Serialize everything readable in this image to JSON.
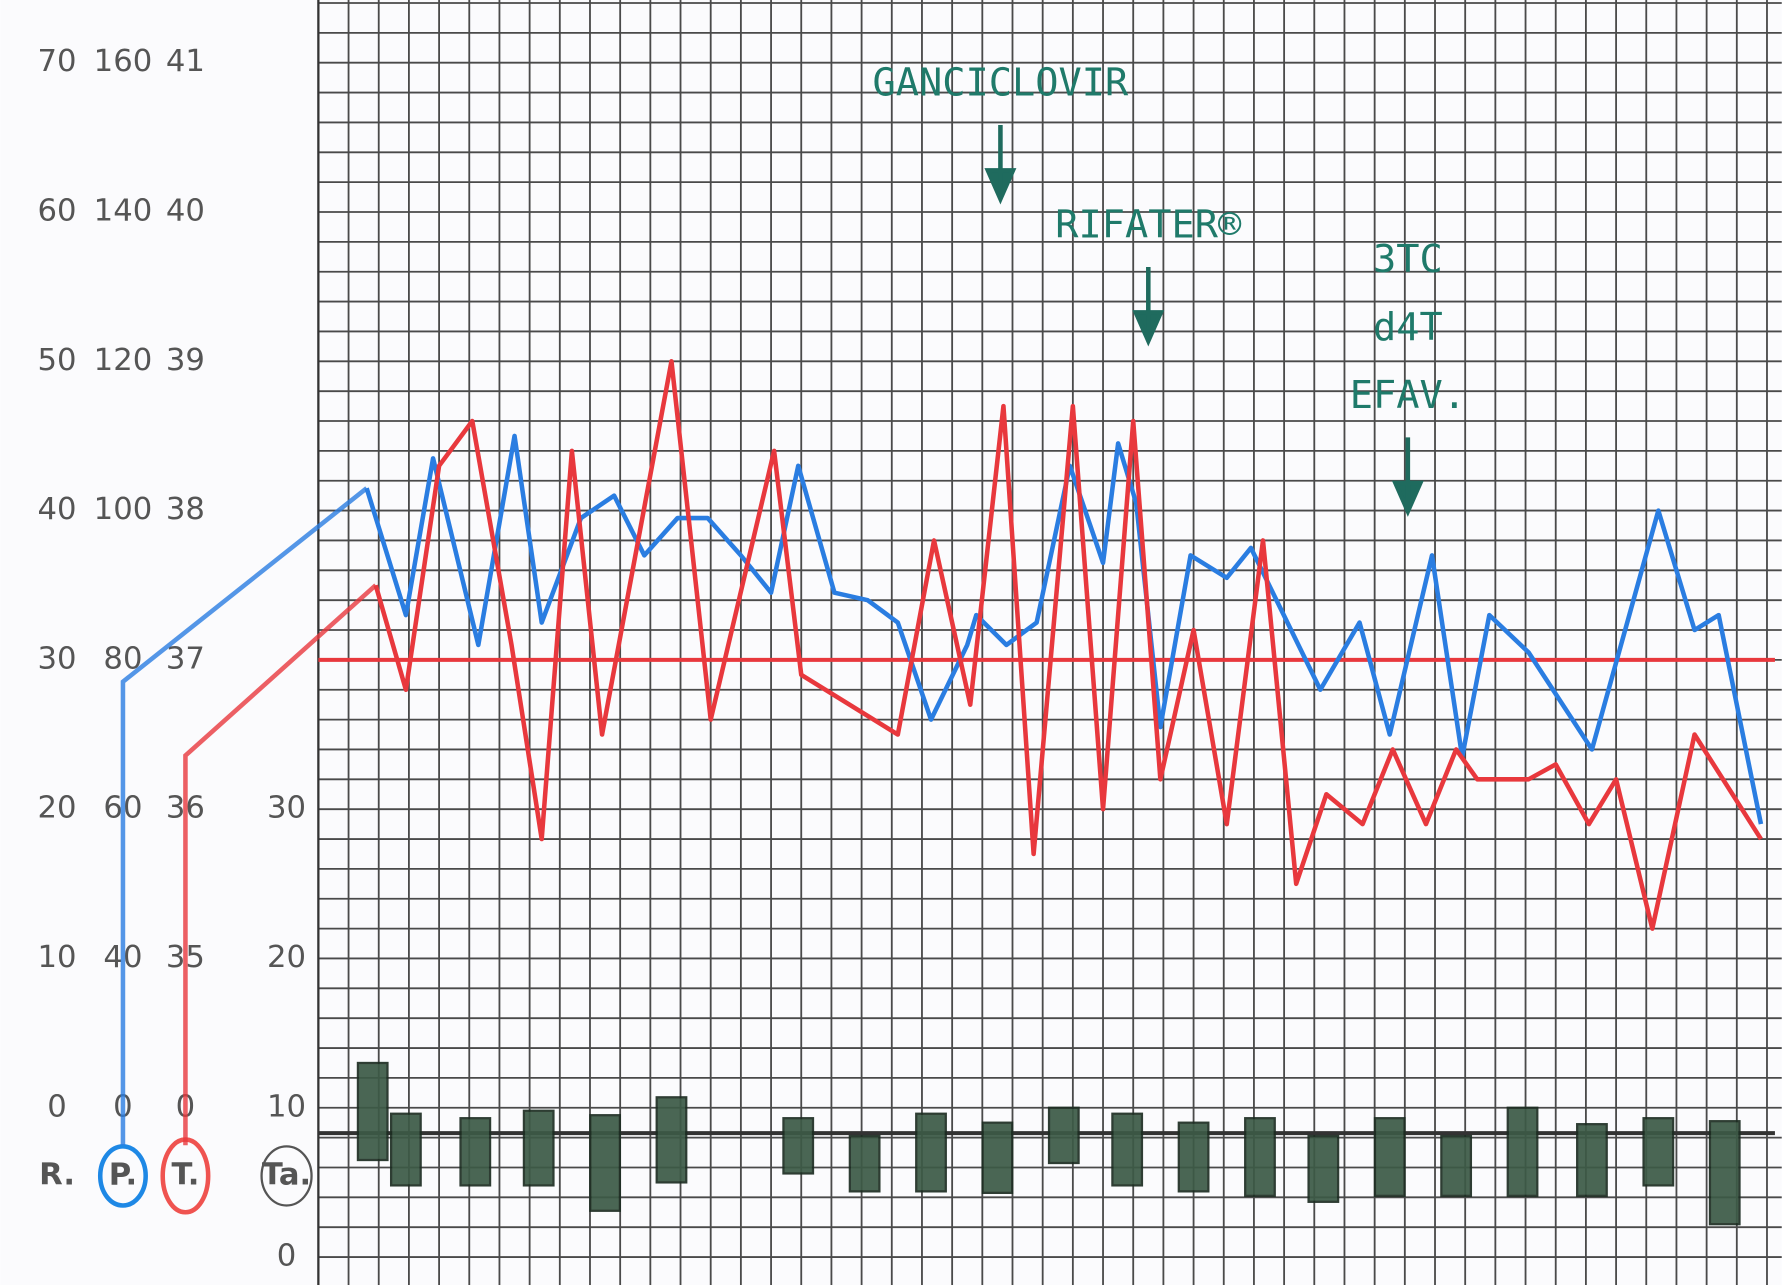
{
  "chart_data": {
    "type": "line",
    "xlim": [
      0,
      48
    ],
    "axes": [
      {
        "label": "R.",
        "ticks": [
          0,
          10,
          20,
          30,
          40,
          50,
          60,
          70
        ]
      },
      {
        "label": "P.",
        "ticks": [
          0,
          40,
          60,
          80,
          100,
          120,
          140,
          160
        ],
        "color": "#1e88e5"
      },
      {
        "label": "T.",
        "ticks": [
          0,
          35,
          36,
          37,
          38,
          39,
          40,
          41
        ],
        "color": "#ef5350"
      },
      {
        "label": "Ta.",
        "ticks": [
          0,
          10,
          20,
          30
        ],
        "color": "#555555"
      }
    ],
    "series": [
      {
        "axis": "P.",
        "color": "#2a7de1",
        "x": [
          1.6,
          2.9,
          3.8,
          5.3,
          6.5,
          7.4,
          8.7,
          9.8,
          10.8,
          11.9,
          12.9,
          14.0,
          15.0,
          15.9,
          17.1,
          18.2,
          19.2,
          20.3,
          21.5,
          21.8,
          22.8,
          23.8,
          24.9,
          26.0,
          26.5,
          27.1,
          27.9,
          28.9,
          30.1,
          30.9,
          33.2,
          34.5,
          35.5,
          36.9,
          37.9,
          38.8,
          40.1,
          42.2,
          44.4,
          45.6,
          46.4,
          47.8
        ],
        "values": [
          103,
          86,
          107,
          82,
          110,
          85,
          99,
          102,
          94,
          99,
          99,
          94,
          89,
          106,
          89,
          88,
          85,
          72,
          82,
          86,
          82,
          85,
          106,
          93,
          109,
          101,
          71,
          94,
          91,
          95,
          76,
          85,
          70,
          94,
          67,
          86,
          81,
          68,
          100,
          84,
          86,
          58
        ]
      },
      {
        "axis": "T.",
        "color": "#e8383d",
        "x": [
          1.9,
          2.9,
          4.0,
          5.1,
          6.4,
          7.4,
          8.4,
          9.4,
          11.7,
          13.0,
          15.1,
          16.0,
          19.2,
          20.4,
          21.6,
          22.7,
          23.7,
          25.0,
          26.0,
          27.0,
          27.9,
          29.0,
          30.1,
          31.3,
          32.4,
          33.4,
          34.6,
          35.6,
          36.7,
          37.7,
          38.4,
          40.1,
          41.0,
          42.1,
          43.0,
          44.2,
          45.6,
          47.8
        ],
        "values": [
          37.5,
          36.8,
          38.3,
          38.6,
          37.1,
          35.8,
          38.4,
          36.5,
          39.0,
          36.6,
          38.4,
          36.9,
          36.5,
          37.8,
          36.7,
          38.7,
          35.7,
          38.7,
          36.0,
          38.6,
          36.2,
          37.2,
          35.9,
          37.8,
          35.5,
          36.1,
          35.9,
          36.4,
          35.9,
          36.4,
          36.2,
          36.2,
          36.3,
          35.9,
          36.2,
          35.2,
          36.5,
          35.8
        ]
      }
    ],
    "range_bars": {
      "axis": "Ta.",
      "color": "#3c5a46",
      "x": [
        1.8,
        2.9,
        5.2,
        7.3,
        9.5,
        11.7,
        15.9,
        18.1,
        20.3,
        22.5,
        24.7,
        26.8,
        29.0,
        31.2,
        33.3,
        35.5,
        37.7,
        39.9,
        42.2,
        44.4,
        46.6
      ],
      "high": [
        13.0,
        9.6,
        9.3,
        9.8,
        9.5,
        10.7,
        9.3,
        8.1,
        9.6,
        9.0,
        10.0,
        9.6,
        9.0,
        9.3,
        8.1,
        9.3,
        8.1,
        10.0,
        8.9,
        9.3,
        9.1
      ],
      "low": [
        6.5,
        4.8,
        4.8,
        4.8,
        3.1,
        5.0,
        5.6,
        4.4,
        4.4,
        4.3,
        6.3,
        4.8,
        4.4,
        4.1,
        3.7,
        4.1,
        4.1,
        4.1,
        4.1,
        4.8,
        2.2
      ]
    },
    "reference_lines": [
      {
        "axis": "T.",
        "value": 37,
        "color": "#e8383d"
      },
      {
        "axis": "Ta.",
        "value": 8.3,
        "color": "#333333"
      }
    ],
    "annotations": [
      {
        "lines": [
          "GANCICLOVIR"
        ],
        "x": 22.6
      },
      {
        "lines": [
          "RIFATER®"
        ],
        "x": 27.5
      },
      {
        "lines": [
          "3TC",
          "d4T",
          "EFAV."
        ],
        "x": 36.1
      }
    ]
  }
}
